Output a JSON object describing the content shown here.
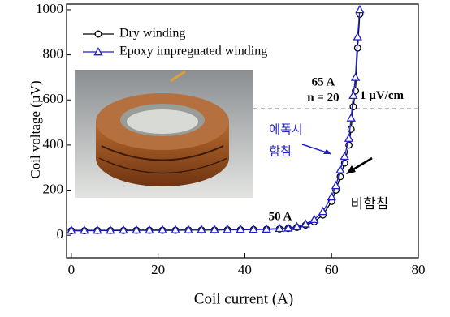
{
  "chart_data": {
    "type": "line",
    "x_label": "Coil current (A)",
    "y_label": "Coil voltage (µV)",
    "xlim": [
      -1.1,
      80
    ],
    "ylim": [
      -100,
      1025
    ],
    "xticks": [
      0,
      20,
      40,
      60,
      80
    ],
    "yticks": [
      0,
      200,
      400,
      600,
      800,
      1000
    ],
    "legend": "top-left",
    "x": [
      0,
      3,
      6,
      9,
      12,
      15,
      18,
      21,
      24,
      27,
      30,
      33,
      36,
      39,
      42,
      45,
      48,
      50,
      52,
      54,
      56,
      58,
      60,
      61,
      62,
      63,
      64,
      64.5,
      65,
      65.5,
      66,
      66.5
    ],
    "series": [
      {
        "name": "Dry winding",
        "color": "#000000",
        "marker": "circle",
        "values": [
          20,
          20,
          21,
          21,
          21,
          22,
          22,
          22,
          22,
          23,
          23,
          23,
          24,
          24,
          25,
          26,
          28,
          30,
          35,
          45,
          60,
          90,
          150,
          200,
          260,
          320,
          400,
          470,
          570,
          640,
          830,
          980
        ]
      },
      {
        "name": "Epoxy impregnated winding",
        "color": "#1f1fd0",
        "marker": "triangle",
        "values": [
          22,
          22,
          22,
          22,
          23,
          23,
          23,
          24,
          24,
          24,
          25,
          25,
          25,
          26,
          26,
          27,
          30,
          32,
          38,
          50,
          70,
          105,
          170,
          220,
          290,
          350,
          430,
          520,
          620,
          700,
          880,
          1000
        ]
      }
    ],
    "reference_line": {
      "value": 560,
      "label": "1 µV/cm"
    },
    "annotations": [
      "65 A",
      "n = 20",
      "50 A",
      "에폭시",
      "함침",
      "비함침"
    ]
  }
}
